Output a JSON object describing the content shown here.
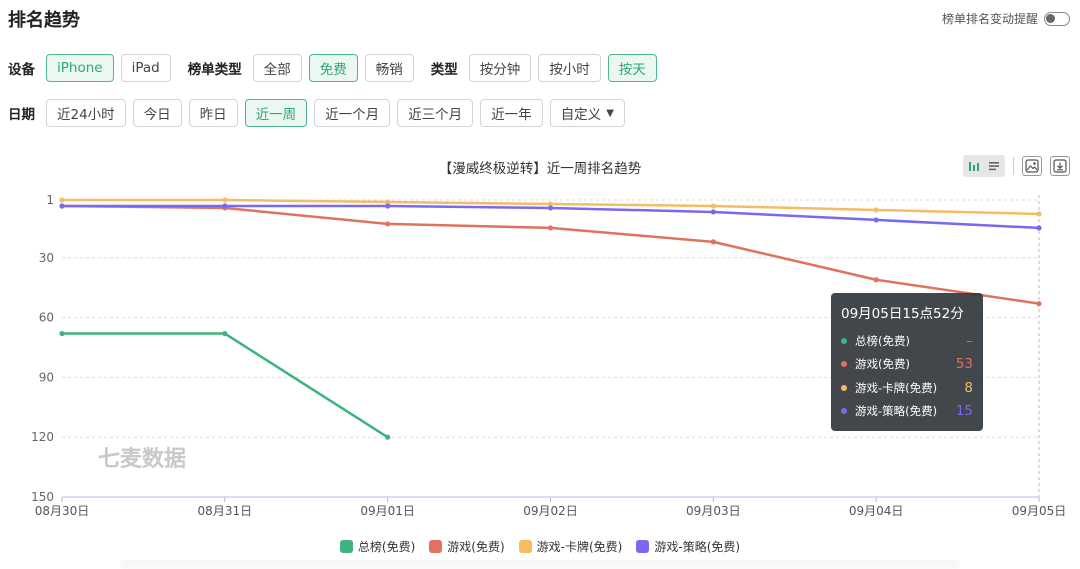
{
  "page": {
    "title": "排名趋势",
    "alert_label": "榜单排名变动提醒",
    "alert_enabled": false
  },
  "filters": {
    "device_label": "设备",
    "devices": [
      "iPhone",
      "iPad"
    ],
    "device_active": 0,
    "list_type_label": "榜单类型",
    "list_types": [
      "全部",
      "免费",
      "畅销"
    ],
    "list_type_active": 1,
    "type_label": "类型",
    "types": [
      "按分钟",
      "按小时",
      "按天"
    ],
    "type_active": 2,
    "date_label": "日期",
    "dates": [
      "近24小时",
      "今日",
      "昨日",
      "近一周",
      "近一个月",
      "近三个月",
      "近一年",
      "自定义"
    ],
    "date_active": 3
  },
  "toolbar": {
    "icons": [
      "bar-chart-icon",
      "list-icon",
      "image-download-icon",
      "download-icon"
    ]
  },
  "watermark": "七麦数据",
  "tooltip": {
    "title": "09月05日15点52分",
    "rows": [
      {
        "name": "总榜(免费)",
        "value": "–",
        "color": "#3fb27f"
      },
      {
        "name": "游戏(免费)",
        "value": "53",
        "color": "#e0735f"
      },
      {
        "name": "游戏-卡牌(免费)",
        "value": "8",
        "color": "#f5bc64"
      },
      {
        "name": "游戏-策略(免费)",
        "value": "15",
        "color": "#7b68ee"
      }
    ]
  },
  "chart_data": {
    "type": "line",
    "title": "【漫威终极逆转】近一周排名趋势",
    "categories": [
      "08月30日",
      "08月31日",
      "09月01日",
      "09月02日",
      "09月03日",
      "09月04日",
      "09月05日"
    ],
    "y_ticks": [
      1,
      30,
      60,
      90,
      120,
      150
    ],
    "ylim": [
      1,
      150
    ],
    "y_inverted": true,
    "grid": true,
    "legend_position": "bottom",
    "series": [
      {
        "name": "总榜(免费)",
        "color": "#3fb27f",
        "values": [
          68,
          68,
          120,
          null,
          null,
          null,
          null
        ]
      },
      {
        "name": "游戏(免费)",
        "color": "#e0735f",
        "values": [
          4,
          5,
          13,
          15,
          22,
          41,
          53
        ]
      },
      {
        "name": "游戏-卡牌(免费)",
        "color": "#f5bc64",
        "values": [
          1,
          1,
          2,
          3,
          4,
          6,
          8
        ]
      },
      {
        "name": "游戏-策略(免费)",
        "color": "#7b68ee",
        "values": [
          4,
          4,
          4,
          5,
          7,
          11,
          15
        ]
      }
    ]
  }
}
